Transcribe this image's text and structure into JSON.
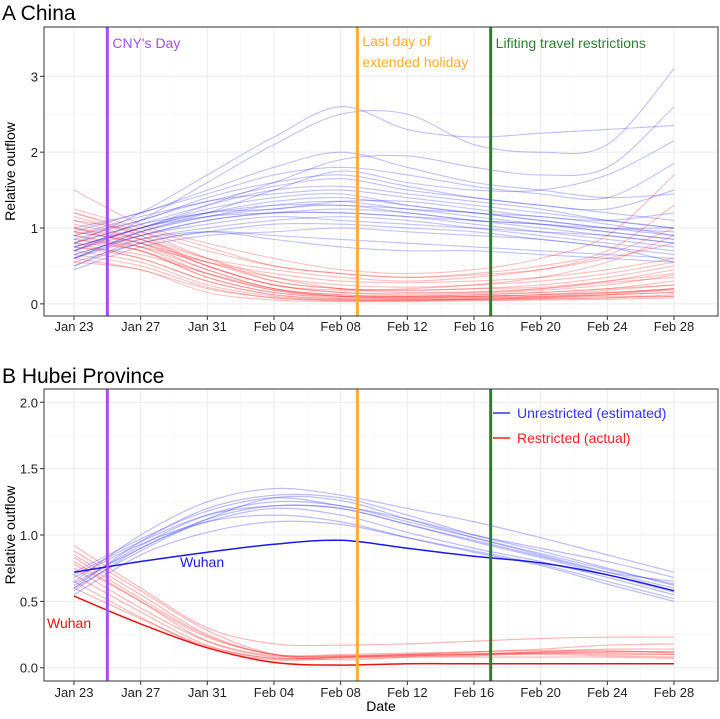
{
  "chart_data": [
    {
      "type": "line",
      "title": "A China",
      "xlabel": "",
      "ylabel": "Relative outflow",
      "x_start_date": "Jan 23",
      "x_days": [
        0,
        4,
        8,
        12,
        16,
        20,
        24,
        28,
        32,
        36
      ],
      "xlim_days": [
        -2,
        38
      ],
      "xticks": [
        "Jan 23",
        "Jan 27",
        "Jan 31",
        "Feb 04",
        "Feb 08",
        "Feb 12",
        "Feb 16",
        "Feb 20",
        "Feb 24",
        "Feb 28"
      ],
      "ylim": [
        -0.16,
        3.65
      ],
      "yticks": [
        "0",
        "1",
        "2",
        "3"
      ],
      "ytick_values": [
        0,
        1,
        2,
        3
      ],
      "grid": true,
      "events": [
        {
          "label": "CNY's Day",
          "day": 2,
          "color": "#a64ff0"
        },
        {
          "label_lines": [
            "Last day of",
            "extended holiday"
          ],
          "day": 17,
          "color": "#ffad33"
        },
        {
          "label": "Lifiting travel restrictions",
          "day": 25,
          "color": "#2e7d32"
        }
      ],
      "series": [
        {
          "name": "Unrestricted (estimated)",
          "color": "#1f1fef",
          "lines": [
            [
              0.6,
              0.95,
              1.15,
              1.25,
              1.3,
              1.2,
              1.1,
              1.0,
              0.9,
              0.8
            ],
            [
              0.7,
              1.0,
              1.2,
              1.35,
              1.4,
              1.3,
              1.2,
              1.1,
              1.0,
              0.9
            ],
            [
              0.8,
              1.05,
              1.3,
              1.5,
              1.55,
              1.45,
              1.35,
              1.25,
              1.1,
              1.0
            ],
            [
              0.5,
              0.85,
              1.0,
              1.1,
              1.15,
              1.1,
              1.0,
              0.9,
              0.8,
              0.7
            ],
            [
              0.9,
              1.1,
              1.4,
              1.6,
              1.7,
              1.55,
              1.4,
              1.3,
              1.2,
              1.1
            ],
            [
              0.45,
              0.75,
              0.9,
              0.95,
              1.0,
              0.95,
              0.9,
              0.85,
              0.75,
              0.65
            ],
            [
              0.65,
              0.9,
              1.1,
              1.2,
              1.2,
              1.15,
              1.05,
              0.95,
              0.85,
              0.75
            ],
            [
              1.0,
              1.2,
              1.5,
              1.8,
              2.0,
              1.8,
              1.6,
              1.5,
              1.4,
              1.45
            ],
            [
              0.7,
              1.1,
              1.6,
              2.1,
              2.5,
              2.5,
              2.1,
              2.0,
              2.1,
              3.1
            ],
            [
              0.8,
              1.2,
              1.7,
              2.2,
              2.6,
              2.3,
              2.2,
              2.25,
              2.3,
              2.35
            ],
            [
              0.75,
              1.0,
              1.3,
              1.6,
              1.9,
              1.95,
              1.8,
              1.7,
              1.8,
              2.6
            ],
            [
              0.6,
              0.95,
              1.2,
              1.5,
              1.75,
              1.6,
              1.5,
              1.5,
              1.7,
              2.15
            ],
            [
              0.55,
              0.8,
              0.95,
              0.9,
              0.85,
              0.8,
              0.75,
              0.7,
              0.65,
              0.6
            ],
            [
              0.85,
              1.1,
              1.35,
              1.45,
              1.5,
              1.4,
              1.3,
              1.2,
              1.1,
              1.0
            ],
            [
              0.7,
              0.95,
              1.15,
              1.3,
              1.35,
              1.25,
              1.2,
              1.1,
              1.0,
              0.95
            ],
            [
              0.6,
              0.9,
              1.1,
              1.2,
              1.25,
              1.2,
              1.1,
              1.05,
              0.95,
              0.85
            ],
            [
              0.75,
              1.0,
              1.25,
              1.4,
              1.45,
              1.3,
              1.2,
              1.15,
              1.05,
              0.9
            ],
            [
              0.5,
              0.8,
              0.95,
              1.05,
              1.05,
              1.0,
              0.95,
              0.85,
              0.75,
              0.55
            ],
            [
              0.9,
              1.15,
              1.35,
              1.55,
              1.65,
              1.5,
              1.4,
              1.3,
              1.25,
              1.5
            ],
            [
              0.65,
              0.9,
              1.05,
              1.15,
              1.1,
              1.05,
              1.0,
              0.95,
              0.9,
              0.8
            ],
            [
              0.8,
              1.05,
              1.2,
              1.3,
              1.3,
              1.25,
              1.15,
              1.05,
              0.95,
              0.85
            ],
            [
              0.7,
              1.0,
              1.15,
              1.2,
              1.2,
              1.15,
              1.1,
              1.05,
              1.0,
              1.0
            ],
            [
              0.95,
              1.2,
              1.45,
              1.7,
              1.8,
              1.7,
              1.55,
              1.45,
              1.4,
              1.85
            ],
            [
              0.6,
              0.85,
              0.95,
              0.85,
              0.75,
              0.7,
              0.7,
              0.65,
              0.6,
              0.55
            ],
            [
              0.75,
              1.0,
              1.2,
              1.25,
              1.35,
              1.35,
              1.25,
              1.15,
              1.1,
              1.2
            ]
          ]
        },
        {
          "name": "Restricted (actual)",
          "color": "#ff1a1a",
          "lines": [
            [
              1.2,
              0.95,
              0.6,
              0.3,
              0.2,
              0.18,
              0.2,
              0.25,
              0.35,
              0.5
            ],
            [
              1.0,
              0.8,
              0.45,
              0.2,
              0.12,
              0.1,
              0.12,
              0.15,
              0.2,
              0.25
            ],
            [
              0.9,
              0.7,
              0.35,
              0.15,
              0.08,
              0.07,
              0.08,
              0.1,
              0.12,
              0.15
            ],
            [
              0.8,
              0.6,
              0.3,
              0.12,
              0.06,
              0.05,
              0.06,
              0.08,
              0.1,
              0.1
            ],
            [
              1.1,
              0.85,
              0.5,
              0.25,
              0.15,
              0.14,
              0.16,
              0.2,
              0.28,
              0.35
            ],
            [
              0.7,
              0.55,
              0.25,
              0.1,
              0.05,
              0.05,
              0.06,
              0.07,
              0.08,
              0.12
            ],
            [
              0.85,
              0.75,
              0.55,
              0.4,
              0.3,
              0.28,
              0.3,
              0.35,
              0.45,
              0.6
            ],
            [
              1.25,
              1.0,
              0.75,
              0.5,
              0.4,
              0.35,
              0.4,
              0.5,
              0.7,
              1.3
            ],
            [
              1.5,
              1.05,
              0.8,
              0.6,
              0.45,
              0.4,
              0.45,
              0.6,
              0.9,
              1.7
            ],
            [
              0.95,
              0.8,
              0.5,
              0.25,
              0.18,
              0.2,
              0.25,
              0.35,
              0.55,
              0.9
            ],
            [
              0.6,
              0.45,
              0.2,
              0.08,
              0.04,
              0.04,
              0.05,
              0.06,
              0.08,
              0.1
            ],
            [
              1.05,
              0.85,
              0.55,
              0.35,
              0.25,
              0.22,
              0.25,
              0.3,
              0.4,
              0.55
            ],
            [
              0.75,
              0.65,
              0.4,
              0.2,
              0.12,
              0.1,
              0.12,
              0.15,
              0.2,
              0.3
            ],
            [
              1.15,
              0.9,
              0.6,
              0.35,
              0.2,
              0.15,
              0.15,
              0.2,
              0.3,
              0.45
            ],
            [
              0.65,
              0.5,
              0.22,
              0.08,
              0.05,
              0.05,
              0.06,
              0.08,
              0.12,
              0.2
            ],
            [
              0.9,
              0.75,
              0.45,
              0.2,
              0.1,
              0.08,
              0.1,
              0.12,
              0.18,
              0.25
            ],
            [
              1.0,
              0.85,
              0.6,
              0.45,
              0.35,
              0.3,
              0.35,
              0.45,
              0.65,
              1.0
            ],
            [
              0.8,
              0.7,
              0.35,
              0.15,
              0.1,
              0.1,
              0.1,
              0.12,
              0.15,
              0.2
            ],
            [
              1.2,
              0.9,
              0.5,
              0.25,
              0.15,
              0.12,
              0.14,
              0.18,
              0.25,
              0.38
            ],
            [
              0.55,
              0.45,
              0.15,
              0.05,
              0.03,
              0.03,
              0.04,
              0.05,
              0.06,
              0.08
            ],
            [
              0.95,
              0.8,
              0.55,
              0.3,
              0.2,
              0.18,
              0.2,
              0.22,
              0.3,
              0.4
            ],
            [
              0.85,
              0.7,
              0.4,
              0.18,
              0.1,
              0.09,
              0.1,
              0.12,
              0.15,
              0.18
            ],
            [
              1.1,
              0.95,
              0.7,
              0.5,
              0.4,
              0.35,
              0.38,
              0.45,
              0.6,
              0.8
            ],
            [
              0.75,
              0.6,
              0.3,
              0.12,
              0.07,
              0.06,
              0.07,
              0.09,
              0.12,
              0.15
            ],
            [
              1.0,
              0.75,
              0.4,
              0.18,
              0.1,
              0.08,
              0.09,
              0.1,
              0.14,
              0.2
            ]
          ]
        }
      ]
    },
    {
      "type": "line",
      "title": "B Hubei Province",
      "xlabel": "Date",
      "ylabel": "Relative outflow",
      "x_start_date": "Jan 23",
      "x_days": [
        0,
        4,
        8,
        12,
        16,
        20,
        24,
        28,
        32,
        36
      ],
      "xlim_days": [
        -2,
        38
      ],
      "xticks": [
        "Jan 23",
        "Jan 27",
        "Jan 31",
        "Feb 04",
        "Feb 08",
        "Feb 12",
        "Feb 16",
        "Feb 20",
        "Feb 24",
        "Feb 28"
      ],
      "ylim": [
        -0.1,
        2.1
      ],
      "yticks": [
        "0.0",
        "0.5",
        "1.0",
        "1.5",
        "2.0"
      ],
      "ytick_values": [
        0,
        0.5,
        1,
        1.5,
        2
      ],
      "grid": true,
      "legend_position": "top-right",
      "legend": [
        {
          "label": "Unrestricted (estimated)",
          "color": "#3333ff"
        },
        {
          "label": "Restricted (actual)",
          "color": "#ff2020"
        }
      ],
      "events": [
        {
          "day": 2,
          "color": "#a64ff0"
        },
        {
          "day": 17,
          "color": "#ffad33"
        },
        {
          "day": 25,
          "color": "#2e7d32"
        }
      ],
      "highlight": [
        {
          "label": "Wuhan",
          "color": "#1a1aee",
          "values": [
            0.72,
            0.8,
            0.87,
            0.93,
            0.96,
            0.9,
            0.84,
            0.79,
            0.7,
            0.58
          ]
        },
        {
          "label": "Wuhan",
          "color": "#ee1111",
          "values": [
            0.54,
            0.33,
            0.15,
            0.04,
            0.02,
            0.03,
            0.03,
            0.03,
            0.03,
            0.03
          ]
        }
      ],
      "series": [
        {
          "name": "Unrestricted (estimated)",
          "color": "#3b3bff",
          "lines": [
            [
              0.6,
              0.95,
              1.2,
              1.3,
              1.28,
              1.15,
              1.0,
              0.88,
              0.75,
              0.62
            ],
            [
              0.65,
              1.0,
              1.25,
              1.35,
              1.3,
              1.2,
              1.1,
              0.98,
              0.85,
              0.72
            ],
            [
              0.7,
              0.95,
              1.15,
              1.22,
              1.2,
              1.08,
              0.95,
              0.83,
              0.7,
              0.57
            ],
            [
              0.58,
              0.9,
              1.1,
              1.2,
              1.15,
              1.02,
              0.9,
              0.8,
              0.68,
              0.55
            ],
            [
              0.62,
              0.92,
              1.15,
              1.25,
              1.22,
              1.1,
              0.98,
              0.86,
              0.74,
              0.63
            ],
            [
              0.55,
              0.85,
              1.02,
              1.1,
              1.08,
              0.98,
              0.88,
              0.78,
              0.65,
              0.52
            ],
            [
              0.68,
              0.93,
              1.1,
              1.15,
              1.1,
              0.98,
              0.87,
              0.77,
              0.63,
              0.5
            ],
            [
              0.6,
              0.88,
              1.12,
              1.28,
              1.26,
              1.12,
              0.98,
              0.85,
              0.72,
              0.6
            ],
            [
              0.72,
              0.97,
              1.18,
              1.28,
              1.22,
              1.12,
              1.0,
              0.9,
              0.8,
              0.68
            ],
            [
              0.64,
              0.9,
              1.12,
              1.22,
              1.2,
              1.08,
              0.96,
              0.84,
              0.72,
              0.65
            ]
          ]
        },
        {
          "name": "Restricted (actual)",
          "color": "#ff3030",
          "lines": [
            [
              0.92,
              0.6,
              0.3,
              0.18,
              0.17,
              0.18,
              0.2,
              0.22,
              0.23,
              0.23
            ],
            [
              0.85,
              0.55,
              0.25,
              0.1,
              0.1,
              0.11,
              0.12,
              0.14,
              0.17,
              0.18
            ],
            [
              0.8,
              0.5,
              0.2,
              0.08,
              0.08,
              0.1,
              0.1,
              0.12,
              0.12,
              0.12
            ],
            [
              0.75,
              0.45,
              0.2,
              0.09,
              0.09,
              0.1,
              0.11,
              0.11,
              0.1,
              0.1
            ],
            [
              0.7,
              0.42,
              0.17,
              0.07,
              0.08,
              0.09,
              0.1,
              0.1,
              0.09,
              0.08
            ],
            [
              0.88,
              0.58,
              0.28,
              0.1,
              0.06,
              0.08,
              0.09,
              0.11,
              0.12,
              0.12
            ],
            [
              0.65,
              0.38,
              0.15,
              0.06,
              0.07,
              0.08,
              0.08,
              0.08,
              0.08,
              0.07
            ],
            [
              0.78,
              0.5,
              0.23,
              0.1,
              0.08,
              0.09,
              0.1,
              0.12,
              0.14,
              0.14
            ],
            [
              0.6,
              0.37,
              0.16,
              0.07,
              0.08,
              0.09,
              0.1,
              0.11,
              0.11,
              0.1
            ],
            [
              0.83,
              0.52,
              0.24,
              0.1,
              0.09,
              0.1,
              0.12,
              0.13,
              0.13,
              0.11
            ]
          ]
        }
      ]
    }
  ]
}
